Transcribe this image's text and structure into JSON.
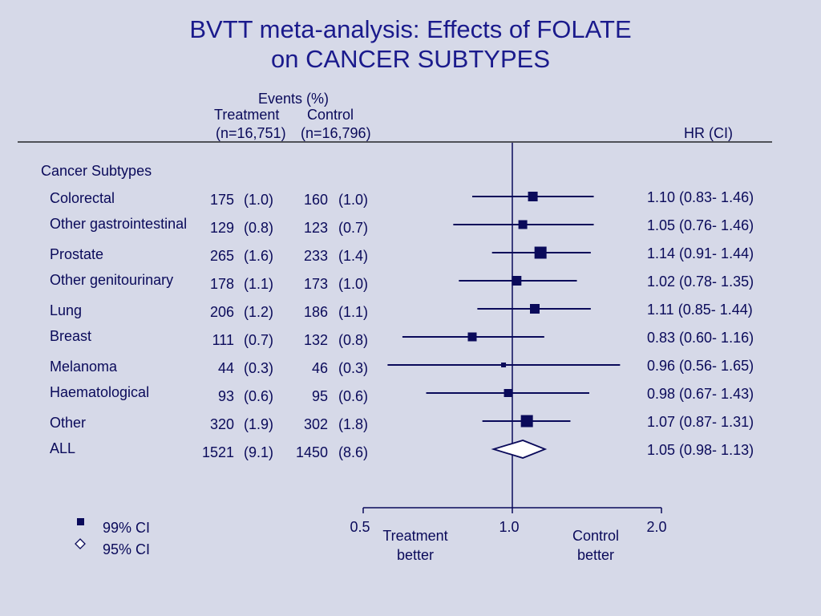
{
  "title_line1": "BVTT meta-analysis: Effects of FOLATE",
  "title_line2": "on CANCER SUBTYPES",
  "header": {
    "events": "Events (%)",
    "treatment": "Treatment",
    "control": "Control",
    "treatment_n": "(n=16,751)",
    "control_n": "(n=16,796)",
    "hr": "HR (CI)"
  },
  "section_label": "Cancer Subtypes",
  "colors": {
    "ink": "#0a0a5a",
    "background": "#d6d9e8"
  },
  "chart_data": {
    "type": "forest",
    "xlim": [
      0.5,
      2.0
    ],
    "x_scale": "log",
    "ticks": [
      0.5,
      1.0,
      2.0
    ],
    "tick_labels": [
      "0.5",
      "1.0",
      "2.0"
    ],
    "reference_line": 1.0,
    "left_label": [
      "Treatment",
      "better"
    ],
    "right_label": [
      "Control",
      "better"
    ],
    "rows": [
      {
        "label": "Colorectal",
        "t_events": "175",
        "t_pct": "(1.0)",
        "c_events": "160",
        "c_pct": "(1.0)",
        "hr": 1.1,
        "lo": 0.83,
        "hi": 1.46,
        "hr_text": "1.10 (0.83- 1.46)",
        "shape": "square",
        "weight": 12
      },
      {
        "label": "Other gastrointestinal",
        "t_events": "129",
        "t_pct": "(0.8)",
        "c_events": "123",
        "c_pct": "(0.7)",
        "hr": 1.05,
        "lo": 0.76,
        "hi": 1.46,
        "hr_text": "1.05 (0.76- 1.46)",
        "shape": "square",
        "weight": 11
      },
      {
        "label": "Prostate",
        "t_events": "265",
        "t_pct": "(1.6)",
        "c_events": "233",
        "c_pct": "(1.4)",
        "hr": 1.14,
        "lo": 0.91,
        "hi": 1.44,
        "hr_text": "1.14 (0.91- 1.44)",
        "shape": "square",
        "weight": 15
      },
      {
        "label": "Other genitourinary",
        "t_events": "178",
        "t_pct": "(1.1)",
        "c_events": "173",
        "c_pct": "(1.0)",
        "hr": 1.02,
        "lo": 0.78,
        "hi": 1.35,
        "hr_text": "1.02 (0.78- 1.35)",
        "shape": "square",
        "weight": 12
      },
      {
        "label": "Lung",
        "t_events": "206",
        "t_pct": "(1.2)",
        "c_events": "186",
        "c_pct": "(1.1)",
        "hr": 1.11,
        "lo": 0.85,
        "hi": 1.44,
        "hr_text": "1.11 (0.85- 1.44)",
        "shape": "square",
        "weight": 12
      },
      {
        "label": "Breast",
        "t_events": "111",
        "t_pct": "(0.7)",
        "c_events": "132",
        "c_pct": "(0.8)",
        "hr": 0.83,
        "lo": 0.6,
        "hi": 1.16,
        "hr_text": "0.83 (0.60- 1.16)",
        "shape": "square",
        "weight": 11
      },
      {
        "label": "Melanoma",
        "t_events": "44",
        "t_pct": "(0.3)",
        "c_events": "46",
        "c_pct": "(0.3)",
        "hr": 0.96,
        "lo": 0.56,
        "hi": 1.65,
        "hr_text": "0.96 (0.56- 1.65)",
        "shape": "square",
        "weight": 6
      },
      {
        "label": "Haematological",
        "t_events": "93",
        "t_pct": "(0.6)",
        "c_events": "95",
        "c_pct": "(0.6)",
        "hr": 0.98,
        "lo": 0.67,
        "hi": 1.43,
        "hr_text": "0.98 (0.67- 1.43)",
        "shape": "square",
        "weight": 10
      },
      {
        "label": "Other",
        "t_events": "320",
        "t_pct": "(1.9)",
        "c_events": "302",
        "c_pct": "(1.8)",
        "hr": 1.07,
        "lo": 0.87,
        "hi": 1.31,
        "hr_text": "1.07 (0.87- 1.31)",
        "shape": "square",
        "weight": 15
      },
      {
        "label": "ALL",
        "t_events": "1521",
        "t_pct": "(9.1)",
        "c_events": "1450",
        "c_pct": "(8.6)",
        "hr": 1.05,
        "lo": 0.98,
        "hi": 1.13,
        "hr_text": "1.05 (0.98- 1.13)",
        "shape": "diamond"
      }
    ]
  },
  "legend": [
    {
      "symbol": "square",
      "label": "99% CI"
    },
    {
      "symbol": "diamond",
      "label": "95% CI"
    }
  ]
}
